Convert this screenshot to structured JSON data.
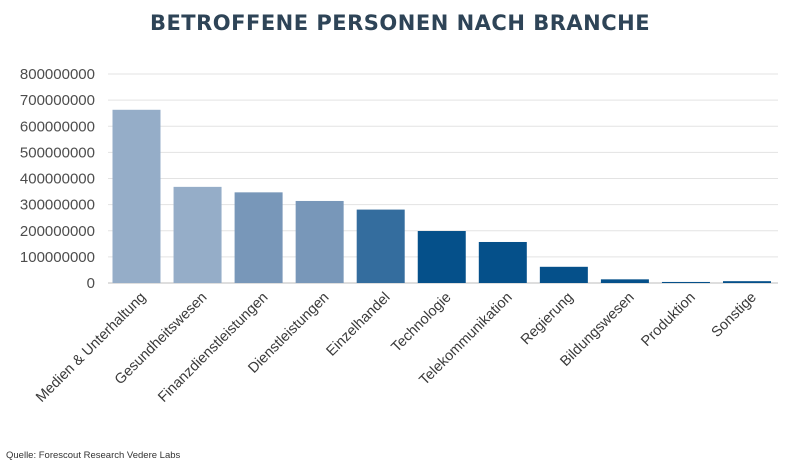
{
  "chart_data": {
    "type": "bar",
    "title": "BETROFFENE PERSONEN NACH BRANCHE",
    "xlabel": "",
    "ylabel": "",
    "ylim": [
      0,
      800000000
    ],
    "yticks": [
      0,
      100000000,
      200000000,
      300000000,
      400000000,
      500000000,
      600000000,
      700000000,
      800000000
    ],
    "ytick_labels": [
      "0",
      "100000000",
      "200000000",
      "300000000",
      "400000000",
      "500000000",
      "600000000",
      "700000000",
      "800000000"
    ],
    "grid": true,
    "categories": [
      "Medien & Unterhaltung",
      "Gesundheitswesen",
      "Finanzdienstleistungen",
      "Dienstleistungen",
      "Einzelhandel",
      "Technologie",
      "Telekommunikation",
      "Regierung",
      "Bildungswesen",
      "Produktion",
      "Sonstige"
    ],
    "values": [
      663000000,
      368000000,
      347000000,
      314000000,
      281000000,
      199000000,
      157000000,
      62000000,
      14000000,
      4000000,
      7000000
    ],
    "colors": [
      "#95adc8",
      "#95adc8",
      "#7897b9",
      "#7897b9",
      "#346d9e",
      "#05508a",
      "#05508a",
      "#05508a",
      "#05508a",
      "#05508a",
      "#05508a"
    ]
  },
  "source": "Quelle: Forescout Research Vedere Labs"
}
